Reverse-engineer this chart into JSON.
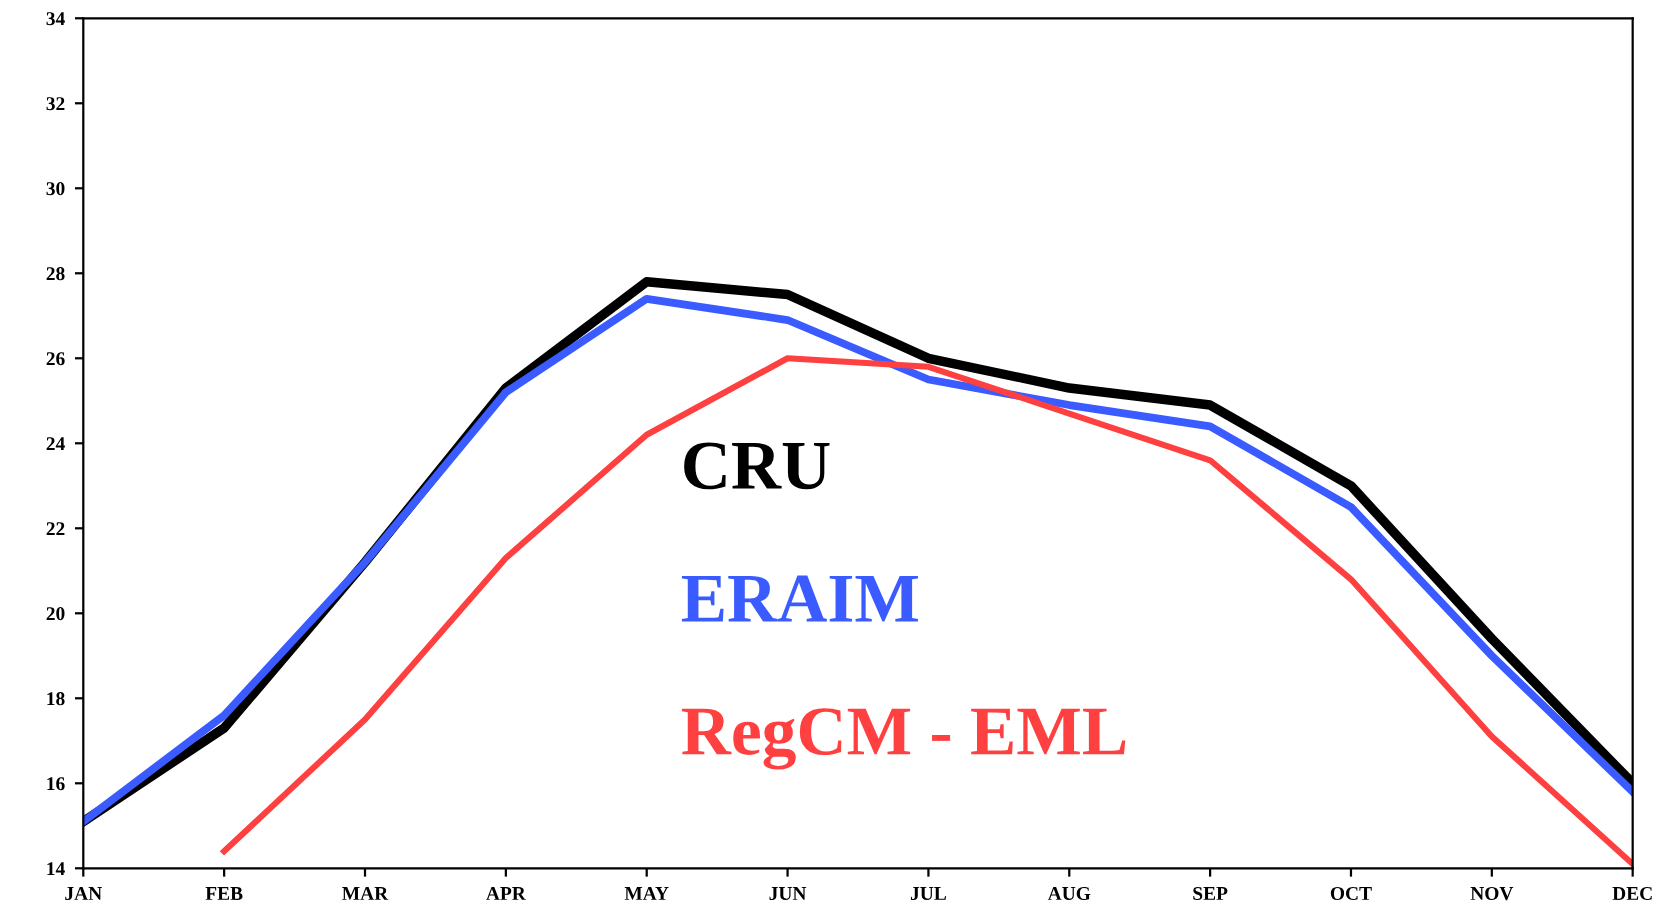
{
  "chart_data": {
    "type": "line",
    "categories": [
      "JAN",
      "FEB",
      "MAR",
      "APR",
      "MAY",
      "JUN",
      "JUL",
      "AUG",
      "SEP",
      "OCT",
      "NOV",
      "DEC"
    ],
    "series": [
      {
        "name": "CRU",
        "color": "#000000",
        "values": [
          15.1,
          17.3,
          21.2,
          25.3,
          27.8,
          27.5,
          26.0,
          25.3,
          24.9,
          23.0,
          19.4,
          16.0
        ]
      },
      {
        "name": "ERAIM",
        "color": "#3a5bff",
        "values": [
          15.1,
          17.6,
          21.2,
          25.2,
          27.4,
          26.9,
          25.5,
          24.9,
          24.4,
          22.5,
          19.0,
          15.8
        ]
      },
      {
        "name": "RegCM - EML",
        "color": "#ff4040",
        "values": [
          null,
          14.4,
          17.5,
          21.3,
          24.2,
          26.0,
          25.8,
          24.7,
          23.6,
          20.8,
          17.1,
          14.1
        ]
      }
    ],
    "ylim": [
      14,
      34
    ],
    "yticks": [
      14,
      16,
      18,
      20,
      22,
      24,
      26,
      28,
      30,
      32,
      34
    ],
    "grid": false,
    "legend": "center",
    "marker": "none",
    "line_style": "solid"
  }
}
